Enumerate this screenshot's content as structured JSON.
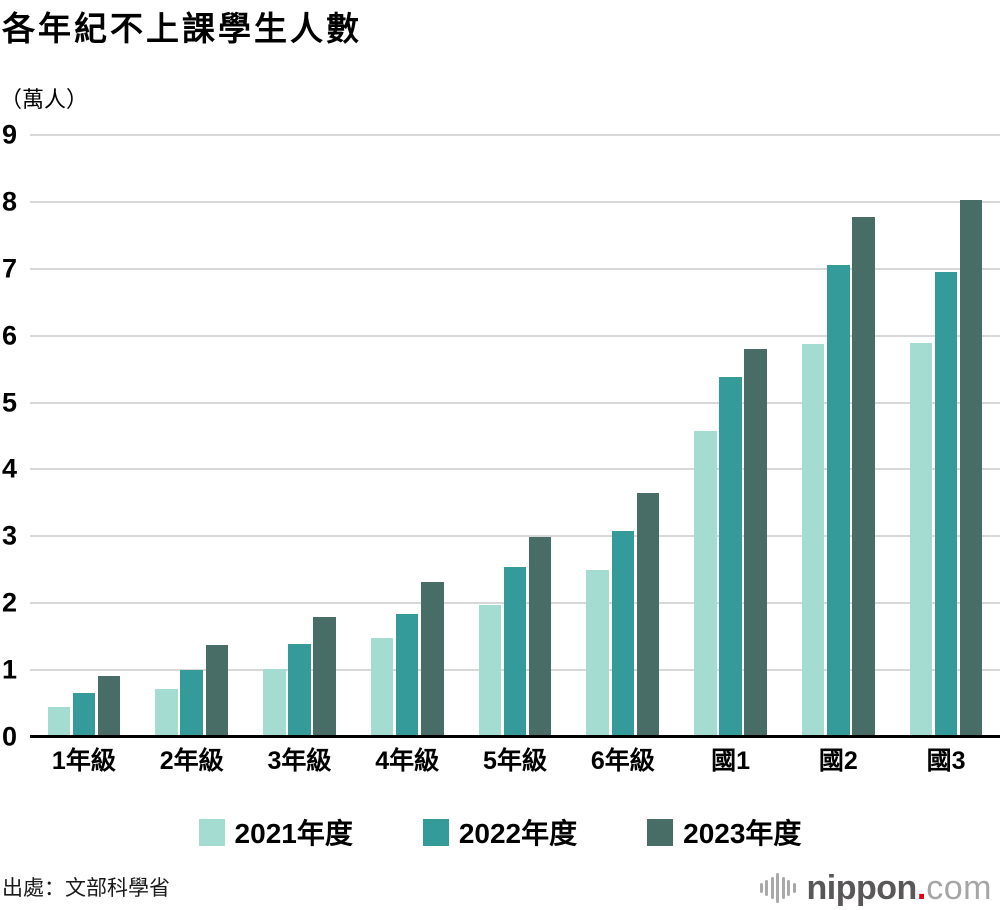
{
  "header": {
    "title": "各年紀不上課學生人數",
    "unit_label": "（萬人）"
  },
  "chart_data": {
    "type": "bar",
    "title": "各年紀不上課學生人數",
    "xlabel": "",
    "ylabel": "（萬人）",
    "categories": [
      "1年級",
      "2年級",
      "3年級",
      "4年級",
      "5年級",
      "6年級",
      "國1",
      "國2",
      "國3"
    ],
    "series": [
      {
        "name": "2021年度",
        "color": "#a5dcd2",
        "values": [
          0.45,
          0.72,
          1.01,
          1.48,
          1.97,
          2.5,
          4.58,
          5.87,
          5.89
        ]
      },
      {
        "name": "2022年度",
        "color": "#349a9a",
        "values": [
          0.66,
          1.0,
          1.39,
          1.84,
          2.54,
          3.08,
          5.38,
          7.06,
          6.95
        ]
      },
      {
        "name": "2023年度",
        "color": "#476d66",
        "values": [
          0.91,
          1.38,
          1.8,
          2.31,
          2.99,
          3.65,
          5.8,
          7.77,
          8.03
        ]
      }
    ],
    "ylim": [
      0,
      9
    ],
    "ytick_step": 1,
    "grid": true,
    "legend_position": "bottom",
    "gridline_color": "#d8d8d8",
    "axis_color": "#000000"
  },
  "footer": {
    "source": "出處：文部科學省",
    "logo": {
      "name": "nippon",
      "dot": ".",
      "tld": "com",
      "accent_color": "#e60012",
      "icon": "soundwave-bars-icon"
    }
  }
}
